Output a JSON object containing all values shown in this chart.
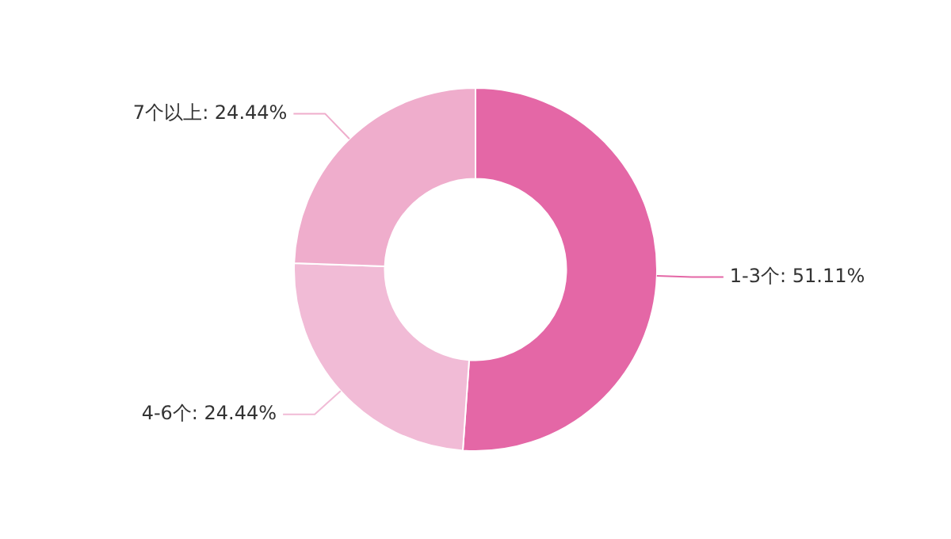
{
  "chart_data": {
    "type": "donut",
    "categories": [
      "1-3个",
      "4-6个",
      "7个以上"
    ],
    "values": [
      51.11,
      24.44,
      24.44
    ],
    "value_labels": [
      "51.11%",
      "24.44%",
      "24.44%"
    ],
    "colors": [
      "#e467a6",
      "#f1bbd6",
      "#efadcc"
    ],
    "legend": false
  }
}
